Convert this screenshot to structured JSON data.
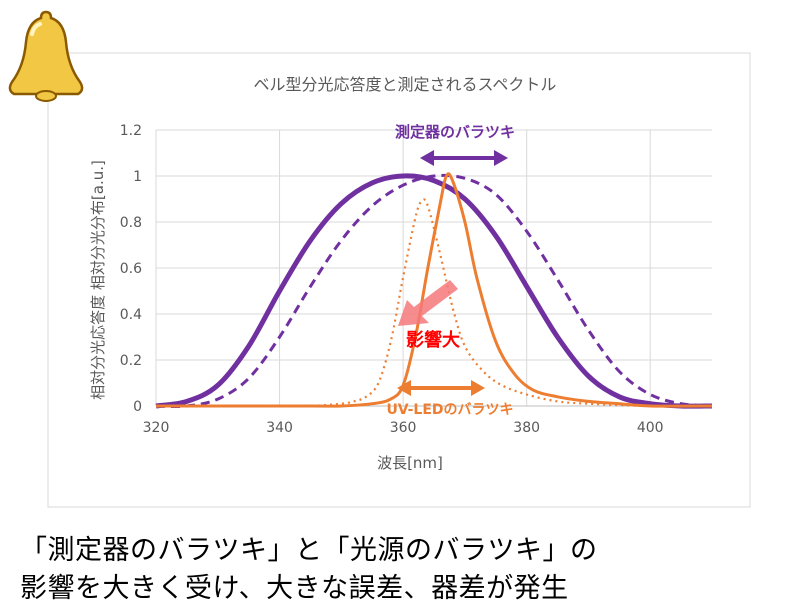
{
  "colors": {
    "purple": "#7030A0",
    "orange": "#ED7D31",
    "red_label": "#FF0000",
    "arrow_pink": "#F4787A",
    "gridline": "#D9D9D9",
    "axis_text": "#595959",
    "bell": "#F2C744"
  },
  "icons": {
    "bell": "bell-icon"
  },
  "chart_data": {
    "type": "line",
    "title": "ベル型分光応答度と測定されるスペクトル",
    "xlabel": "波長[nm]",
    "ylabel": "相対分光応答度 相対分光分布[a.u.]",
    "xlim": [
      320,
      410
    ],
    "ylim": [
      0,
      1.2
    ],
    "x_ticks": [
      "320",
      "340",
      "360",
      "380",
      "400"
    ],
    "y_ticks": [
      "0",
      "0.2",
      "0.4",
      "0.6",
      "0.8",
      "1",
      "1.2"
    ],
    "grid": true,
    "series": [
      {
        "style": "solid",
        "color": "#7030A0",
        "x": [
          320,
          325,
          330,
          335,
          340,
          345,
          350,
          355,
          360,
          365,
          370,
          375,
          380,
          385,
          390,
          395,
          400,
          405,
          410
        ],
        "values": [
          0.0,
          0.02,
          0.09,
          0.26,
          0.5,
          0.72,
          0.88,
          0.97,
          1.0,
          0.98,
          0.9,
          0.74,
          0.52,
          0.3,
          0.13,
          0.04,
          0.01,
          0.0,
          0.0
        ]
      },
      {
        "style": "dashed",
        "color": "#7030A0",
        "x": [
          320,
          325,
          330,
          335,
          340,
          345,
          350,
          355,
          360,
          365,
          370,
          375,
          380,
          385,
          390,
          395,
          400,
          405,
          410
        ],
        "values": [
          0.0,
          0.0,
          0.03,
          0.12,
          0.3,
          0.52,
          0.72,
          0.87,
          0.96,
          1.0,
          0.99,
          0.92,
          0.76,
          0.55,
          0.33,
          0.15,
          0.05,
          0.01,
          0.0
        ]
      },
      {
        "style": "solid",
        "color": "#ED7D31",
        "x": [
          320,
          345,
          350,
          355,
          358,
          360,
          362,
          364,
          366,
          367,
          368,
          370,
          372,
          375,
          378,
          381,
          385,
          390,
          395,
          400,
          410
        ],
        "values": [
          0,
          0,
          0,
          0.01,
          0.03,
          0.09,
          0.3,
          0.6,
          0.88,
          1.0,
          0.98,
          0.8,
          0.55,
          0.28,
          0.14,
          0.07,
          0.04,
          0.02,
          0.01,
          0,
          0
        ]
      },
      {
        "style": "dotted",
        "color": "#ED7D31",
        "x": [
          320,
          340,
          345,
          350,
          352,
          354,
          356,
          358,
          360,
          362,
          363,
          364,
          366,
          368,
          370,
          373,
          376,
          380,
          385,
          390,
          400,
          410
        ],
        "values": [
          0,
          0,
          0,
          0.01,
          0.02,
          0.04,
          0.1,
          0.28,
          0.56,
          0.82,
          0.89,
          0.87,
          0.66,
          0.43,
          0.26,
          0.15,
          0.09,
          0.05,
          0.02,
          0.01,
          0,
          0
        ]
      }
    ],
    "annotations": {
      "purple_label": "測定器のバラツキ",
      "orange_label": "UV-LEDのバラツキ",
      "impact_label": "影響大"
    }
  },
  "caption": {
    "line1": "「測定器のバラツキ」と「光源のバラツキ」の",
    "line2": "影響を大きく受け、大きな誤差、器差が発生"
  }
}
